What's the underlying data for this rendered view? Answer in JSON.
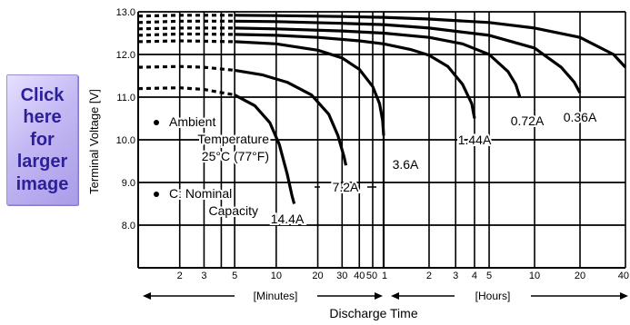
{
  "thumbnail": {
    "lines": [
      "Click",
      "here",
      "for",
      "larger",
      "image"
    ]
  },
  "chart_data": {
    "type": "line",
    "title": "",
    "xlabel": "Discharge Time",
    "ylabel": "Terminal Voltage [V]",
    "x_unit_labels": {
      "minutes": "[Minutes]",
      "hours": "[Hours]"
    },
    "x_tick_labels": [
      "2",
      "3",
      "5",
      "10",
      "20",
      "30",
      "40",
      "50",
      "1",
      "2",
      "3",
      "4",
      "5",
      "10",
      "20",
      "40"
    ],
    "x_ticks_minutes": [
      2,
      3,
      5,
      10,
      20,
      30,
      40,
      50,
      60,
      120,
      180,
      240,
      300,
      600,
      1200,
      2400
    ],
    "x_gridlines_minutes": [
      2,
      3,
      4,
      5,
      10,
      20,
      30,
      40,
      50,
      60,
      120,
      180,
      240,
      300,
      600,
      1200,
      2400
    ],
    "xlim_minutes": [
      1,
      2400
    ],
    "x_scale": "log",
    "y_ticks": [
      "13.0",
      "12.0",
      "11.0",
      "10.0",
      "9.0",
      "8.0"
    ],
    "ylim": [
      7.0,
      13.0
    ],
    "grid": true,
    "notes": [
      {
        "bullet": true,
        "lines": [
          "Ambient",
          "Temperature",
          "25°C (77°F)"
        ]
      },
      {
        "bullet": true,
        "lines": [
          "C: Nominal",
          "Capacity"
        ]
      }
    ],
    "series": [
      {
        "name": "14.4A",
        "x": [
          1,
          2,
          3,
          5,
          7,
          9,
          10.5,
          12,
          13,
          13.5
        ],
        "y": [
          11.2,
          11.22,
          11.18,
          11.05,
          10.8,
          10.4,
          9.9,
          9.2,
          8.7,
          8.5
        ]
      },
      {
        "name": "7.2A",
        "x": [
          1,
          2,
          3,
          5,
          8,
          12,
          18,
          24,
          28,
          31,
          32
        ],
        "y": [
          11.7,
          11.72,
          11.7,
          11.63,
          11.52,
          11.35,
          11.05,
          10.6,
          10.1,
          9.6,
          9.4
        ]
      },
      {
        "name": "3.6A",
        "x": [
          1,
          2,
          5,
          10,
          20,
          30,
          40,
          50,
          56,
          59,
          60
        ],
        "y": [
          12.3,
          12.32,
          12.3,
          12.25,
          12.1,
          11.92,
          11.65,
          11.25,
          10.85,
          10.45,
          10.1
        ]
      },
      {
        "name": "1.44A",
        "x": [
          1,
          2,
          5,
          10,
          20,
          40,
          60,
          90,
          120,
          160,
          200,
          230,
          240
        ],
        "y": [
          12.45,
          12.48,
          12.47,
          12.45,
          12.4,
          12.32,
          12.25,
          12.12,
          11.98,
          11.72,
          11.3,
          10.85,
          10.5
        ]
      },
      {
        "name": "0.72A",
        "x": [
          1,
          2,
          5,
          10,
          30,
          60,
          120,
          200,
          300,
          400,
          450,
          480
        ],
        "y": [
          12.6,
          12.62,
          12.62,
          12.6,
          12.55,
          12.5,
          12.4,
          12.25,
          12.0,
          11.6,
          11.3,
          11.0
        ]
      },
      {
        "name": "0.36A",
        "x": [
          1,
          2,
          5,
          10,
          30,
          60,
          120,
          300,
          600,
          900,
          1100,
          1200
        ],
        "y": [
          12.75,
          12.78,
          12.78,
          12.77,
          12.73,
          12.7,
          12.62,
          12.45,
          12.15,
          11.7,
          11.35,
          11.1
        ]
      },
      {
        "name": "",
        "x": [
          1,
          2,
          5,
          10,
          30,
          60,
          120,
          300,
          600,
          1200,
          2000,
          2400
        ],
        "y": [
          12.9,
          12.92,
          12.92,
          12.91,
          12.89,
          12.87,
          12.83,
          12.75,
          12.62,
          12.4,
          12.0,
          11.7
        ]
      }
    ]
  }
}
